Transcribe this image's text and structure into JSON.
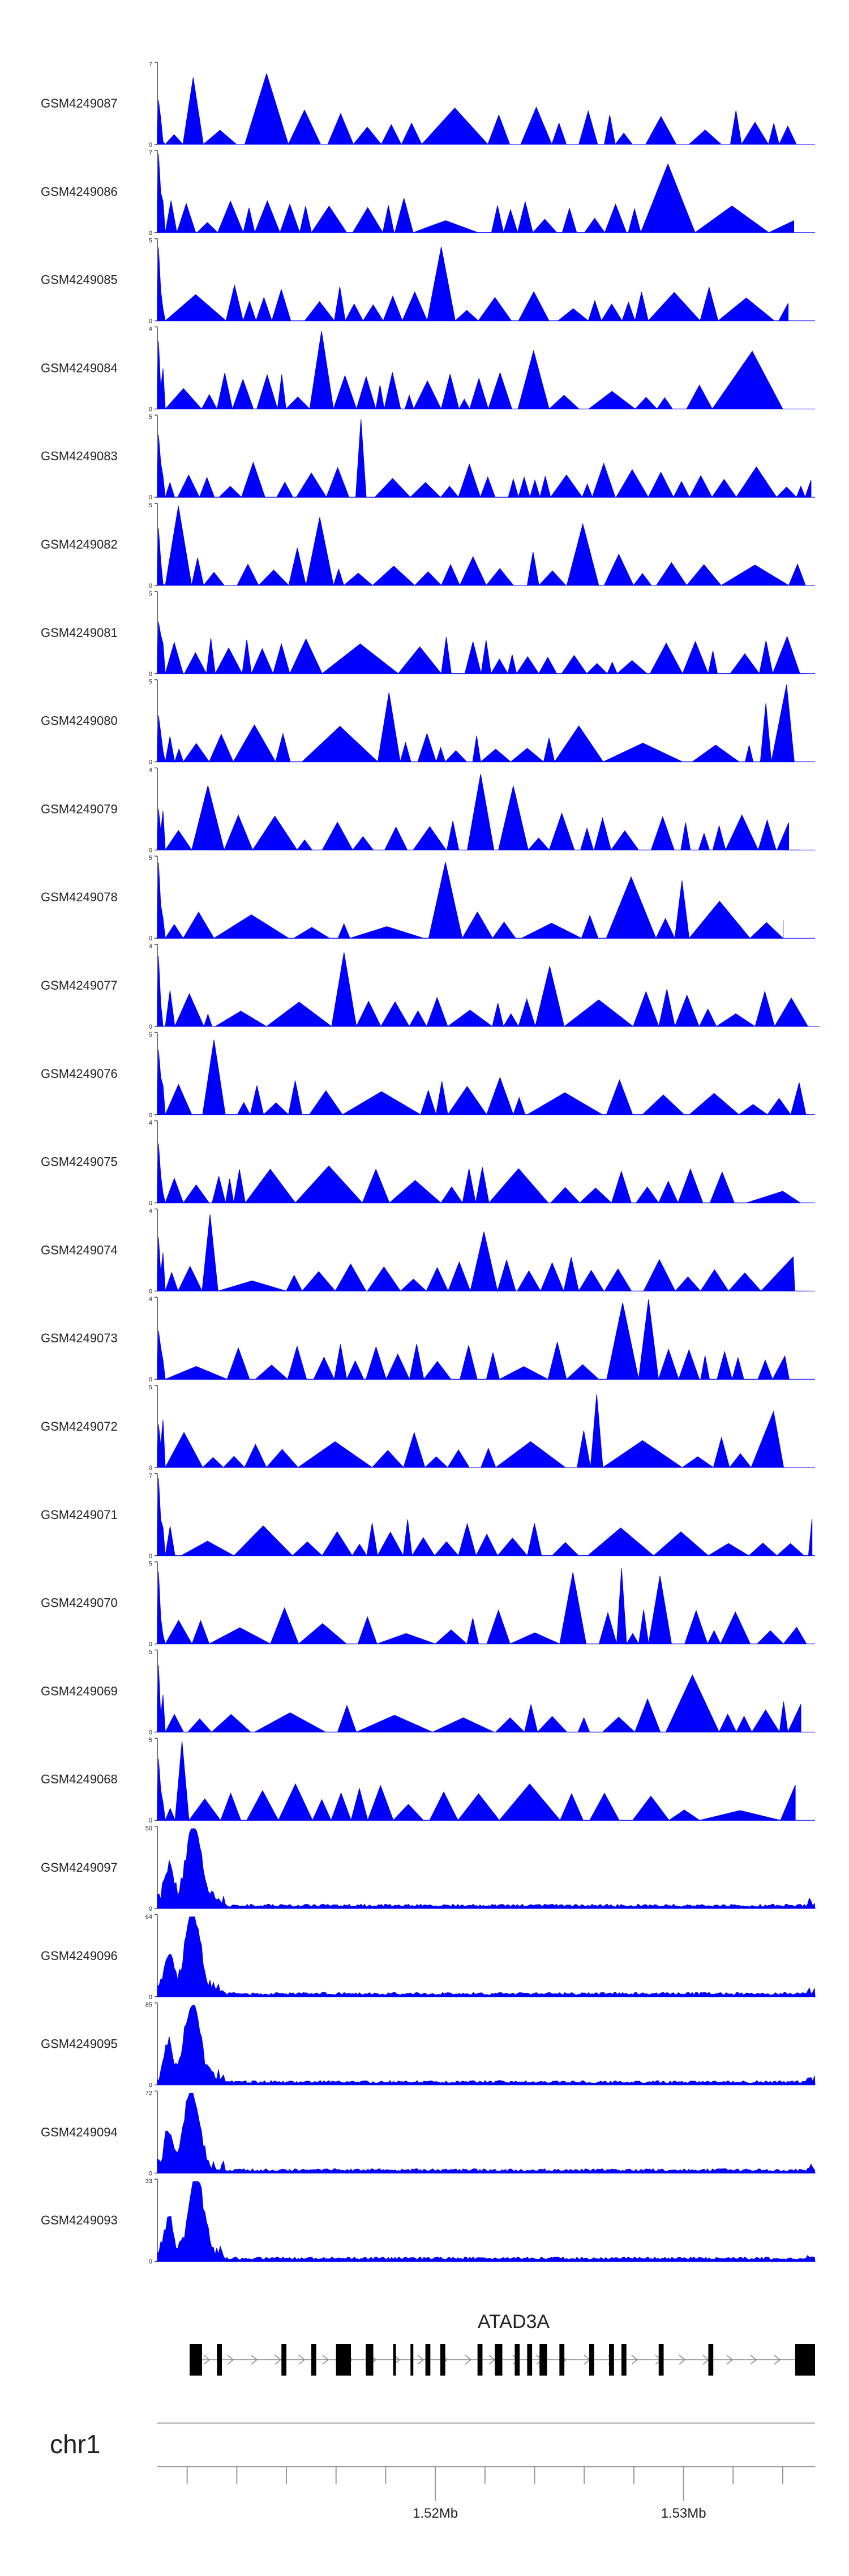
{
  "chart_data": {
    "type": "area",
    "color": "#0000ff",
    "axis_color": "#444444",
    "chromosome": "chr1",
    "x_range_mb": [
      1.5088,
      1.5353
    ],
    "x_ticks": [
      {
        "value": 1.51,
        "label": ""
      },
      {
        "value": 1.512,
        "label": ""
      },
      {
        "value": 1.514,
        "label": ""
      },
      {
        "value": 1.516,
        "label": ""
      },
      {
        "value": 1.518,
        "label": ""
      },
      {
        "value": 1.52,
        "label": "1.52Mb"
      },
      {
        "value": 1.522,
        "label": ""
      },
      {
        "value": 1.524,
        "label": ""
      },
      {
        "value": 1.526,
        "label": ""
      },
      {
        "value": 1.528,
        "label": ""
      },
      {
        "value": 1.53,
        "label": "1.53Mb"
      },
      {
        "value": 1.532,
        "label": ""
      },
      {
        "value": 1.534,
        "label": ""
      }
    ],
    "gene": {
      "name": "ATAD3A",
      "strand": "+",
      "start": 1.5101,
      "end": 1.5353,
      "exons": [
        [
          1.5101,
          1.5106
        ],
        [
          1.5112,
          1.5114
        ],
        [
          1.5138,
          1.514
        ],
        [
          1.515,
          1.5152
        ],
        [
          1.516,
          1.5166
        ],
        [
          1.5172,
          1.5175
        ],
        [
          1.5183,
          1.5184
        ],
        [
          1.519,
          1.5191
        ],
        [
          1.5196,
          1.5198
        ],
        [
          1.5202,
          1.5204
        ],
        [
          1.5217,
          1.5219
        ],
        [
          1.5224,
          1.5227
        ],
        [
          1.5232,
          1.5234
        ],
        [
          1.5237,
          1.5239
        ],
        [
          1.5242,
          1.5245
        ],
        [
          1.525,
          1.5252
        ],
        [
          1.5262,
          1.5264
        ],
        [
          1.527,
          1.5272
        ],
        [
          1.5275,
          1.5277
        ],
        [
          1.529,
          1.5292
        ],
        [
          1.531,
          1.5312
        ],
        [
          1.5345,
          1.5353
        ]
      ]
    },
    "tracks": [
      {
        "name": "GSM4249087",
        "ymax": 7,
        "type": "sparse"
      },
      {
        "name": "GSM4249086",
        "ymax": 7,
        "type": "sparse"
      },
      {
        "name": "GSM4249085",
        "ymax": 5,
        "type": "sparse"
      },
      {
        "name": "GSM4249084",
        "ymax": 4,
        "type": "sparse"
      },
      {
        "name": "GSM4249083",
        "ymax": 5,
        "type": "sparse"
      },
      {
        "name": "GSM4249082",
        "ymax": 5,
        "type": "sparse"
      },
      {
        "name": "GSM4249081",
        "ymax": 5,
        "type": "sparse"
      },
      {
        "name": "GSM4249080",
        "ymax": 5,
        "type": "sparse"
      },
      {
        "name": "GSM4249079",
        "ymax": 4,
        "type": "sparse"
      },
      {
        "name": "GSM4249078",
        "ymax": 5,
        "type": "sparse"
      },
      {
        "name": "GSM4249077",
        "ymax": 4,
        "type": "sparse"
      },
      {
        "name": "GSM4249076",
        "ymax": 5,
        "type": "sparse"
      },
      {
        "name": "GSM4249075",
        "ymax": 4,
        "type": "sparse"
      },
      {
        "name": "GSM4249074",
        "ymax": 4,
        "type": "sparse"
      },
      {
        "name": "GSM4249073",
        "ymax": 4,
        "type": "sparse"
      },
      {
        "name": "GSM4249072",
        "ymax": 5,
        "type": "sparse"
      },
      {
        "name": "GSM4249071",
        "ymax": 7,
        "type": "sparse"
      },
      {
        "name": "GSM4249070",
        "ymax": 5,
        "type": "sparse"
      },
      {
        "name": "GSM4249069",
        "ymax": 5,
        "type": "sparse"
      },
      {
        "name": "GSM4249068",
        "ymax": 5,
        "type": "sparse"
      },
      {
        "name": "GSM4249097",
        "ymax": 50,
        "type": "dense"
      },
      {
        "name": "GSM4249096",
        "ymax": 64,
        "type": "dense"
      },
      {
        "name": "GSM4249095",
        "ymax": 85,
        "type": "dense"
      },
      {
        "name": "GSM4249094",
        "ymax": 72,
        "type": "dense"
      },
      {
        "name": "GSM4249093",
        "ymax": 33,
        "type": "dense"
      }
    ]
  }
}
